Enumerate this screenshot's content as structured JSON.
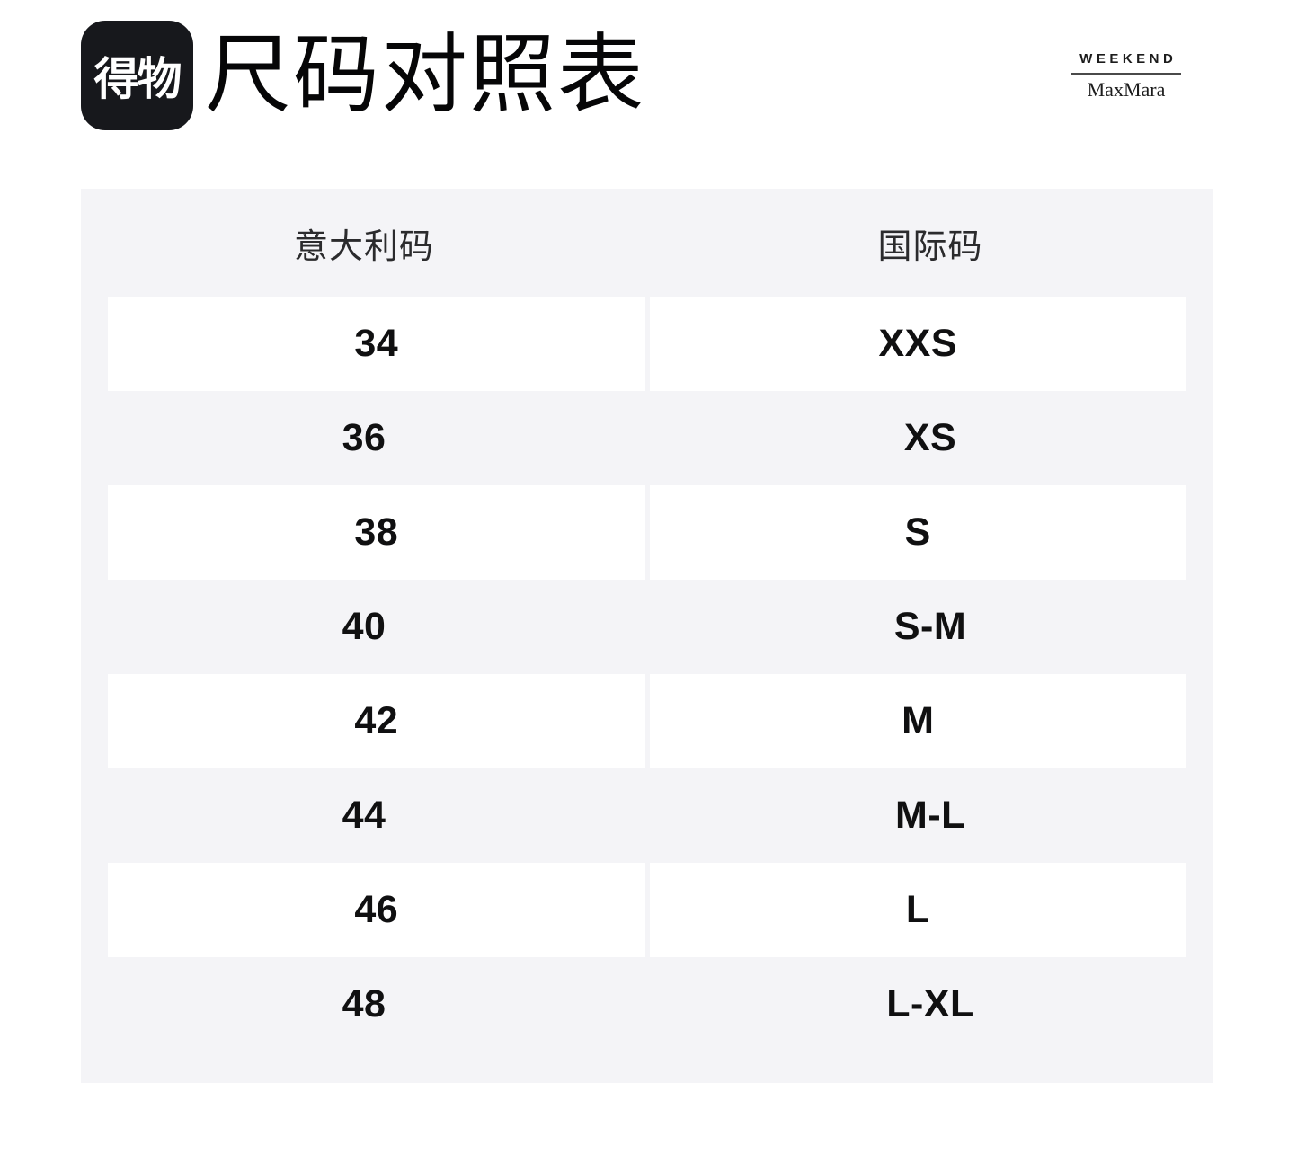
{
  "header": {
    "app_logo_text": "得物",
    "title": "尺码对照表",
    "brand": {
      "line1": "WEEKEND",
      "line2": "MaxMara"
    }
  },
  "table": {
    "columns": [
      "意大利码",
      "国际码"
    ],
    "rows": [
      {
        "it": "34",
        "intl": "XXS"
      },
      {
        "it": "36",
        "intl": "XS"
      },
      {
        "it": "38",
        "intl": "S"
      },
      {
        "it": "40",
        "intl": "S-M"
      },
      {
        "it": "42",
        "intl": "M"
      },
      {
        "it": "44",
        "intl": "M-L"
      },
      {
        "it": "46",
        "intl": "L"
      },
      {
        "it": "48",
        "intl": "L-XL"
      }
    ]
  },
  "colors": {
    "page_bg": "#ffffff",
    "table_bg": "#f4f4f7",
    "row_highlight_bg": "#ffffff",
    "logo_bg": "#17181c",
    "text_primary": "#101011",
    "text_header": "#2b2b2d"
  }
}
